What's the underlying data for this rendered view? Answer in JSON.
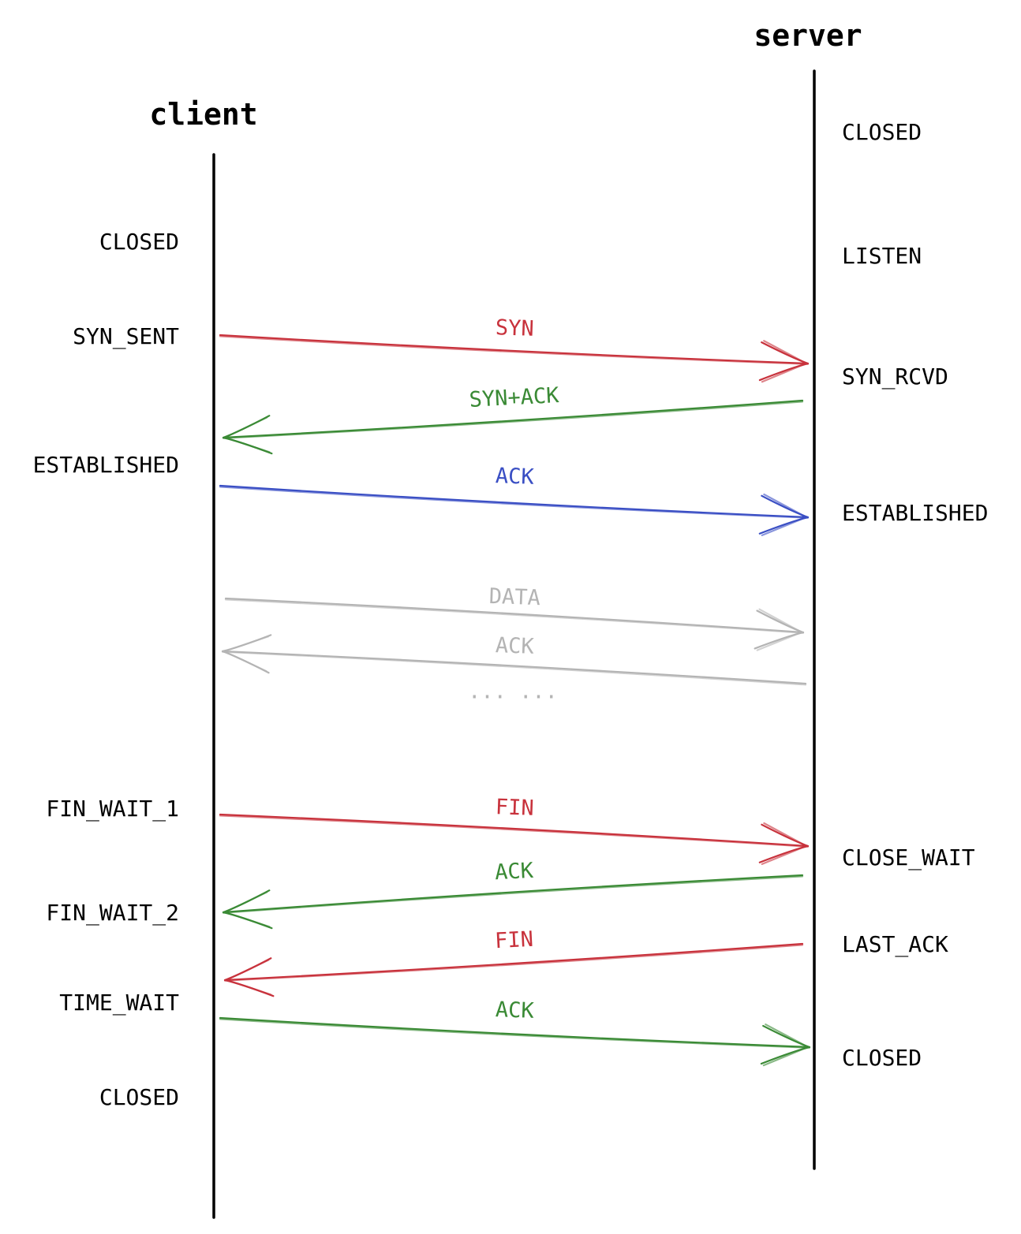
{
  "participants": {
    "client": {
      "title": "client"
    },
    "server": {
      "title": "server"
    }
  },
  "client_states": [
    "CLOSED",
    "SYN_SENT",
    "ESTABLISHED",
    "FIN_WAIT_1",
    "FIN_WAIT_2",
    "TIME_WAIT",
    "CLOSED"
  ],
  "server_states": [
    "CLOSED",
    "LISTEN",
    "SYN_RCVD",
    "ESTABLISHED",
    "CLOSE_WAIT",
    "LAST_ACK",
    "CLOSED"
  ],
  "messages": [
    {
      "label": "SYN",
      "direction": "client-to-server",
      "color": "#c8323c"
    },
    {
      "label": "SYN+ACK",
      "direction": "server-to-client",
      "color": "#3a8a35"
    },
    {
      "label": "ACK",
      "direction": "client-to-server",
      "color": "#3a4fc4"
    },
    {
      "label": "DATA",
      "direction": "client-to-server",
      "color": "#b4b4b4"
    },
    {
      "label": "ACK",
      "direction": "server-to-client",
      "color": "#b4b4b4"
    },
    {
      "label": "FIN",
      "direction": "client-to-server",
      "color": "#c8323c"
    },
    {
      "label": "ACK",
      "direction": "server-to-client",
      "color": "#3a8a35"
    },
    {
      "label": "FIN",
      "direction": "server-to-client",
      "color": "#c8323c"
    },
    {
      "label": "ACK",
      "direction": "client-to-server",
      "color": "#3a8a35"
    }
  ],
  "ellipsis": "···   ···",
  "colors": {
    "syn_fin": "#c8323c",
    "ack_green": "#3a8a35",
    "ack_blue": "#3a4fc4",
    "data_gray": "#b4b4b4",
    "lifeline": "#000000"
  }
}
